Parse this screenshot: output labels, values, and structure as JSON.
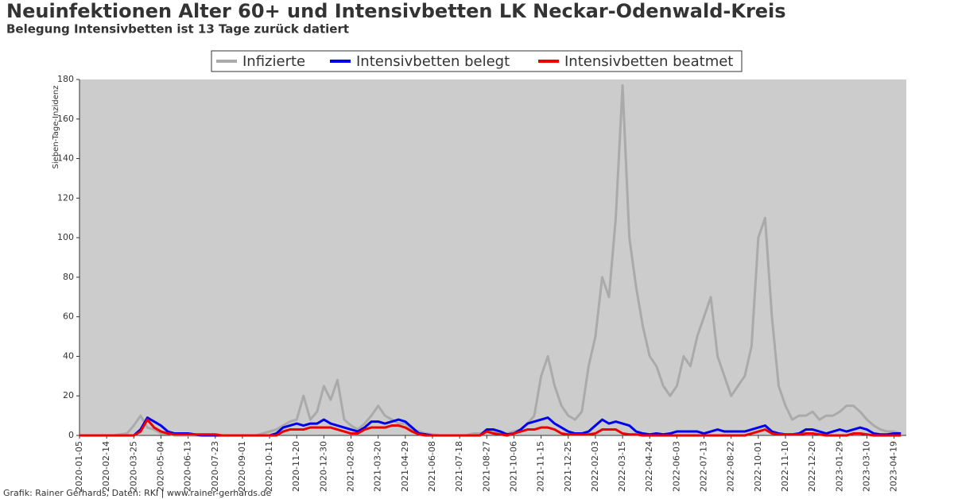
{
  "chart_data": {
    "type": "line",
    "title": "Neuinfektionen Alter 60+ und Intensivbetten LK Neckar-Odenwald-Kreis",
    "subtitle": "Belegung Intensivbetten ist 13 Tage zurück datiert",
    "ylabel": "Sieben-Tage-Inzidenz",
    "footer": "Grafik: Rainer Gerhards, Daten: RKI | www.rainer-gerhards.de",
    "legend": "top",
    "grid": false,
    "xlim": [
      "2020-01-05",
      "2023-05-07"
    ],
    "ylim": [
      0,
      180
    ],
    "yticks": [
      0,
      20,
      40,
      60,
      80,
      100,
      120,
      140,
      160,
      180
    ],
    "xticks": [
      "2020-01-05",
      "2020-02-14",
      "2020-03-25",
      "2020-05-04",
      "2020-06-13",
      "2020-07-23",
      "2020-09-01",
      "2020-10-11",
      "2020-11-20",
      "2020-12-30",
      "2021-02-08",
      "2021-03-20",
      "2021-04-29",
      "2021-06-08",
      "2021-07-18",
      "2021-08-27",
      "2021-10-06",
      "2021-11-15",
      "2021-12-25",
      "2022-02-03",
      "2022-03-15",
      "2022-04-24",
      "2022-06-03",
      "2022-07-13",
      "2022-08-22",
      "2022-10-01",
      "2022-11-10",
      "2022-12-20",
      "2023-01-29",
      "2023-03-10",
      "2023-04-19"
    ],
    "x": [
      "2020-01-05",
      "2020-01-15",
      "2020-01-25",
      "2020-02-04",
      "2020-02-14",
      "2020-02-24",
      "2020-03-05",
      "2020-03-15",
      "2020-03-25",
      "2020-04-04",
      "2020-04-14",
      "2020-04-24",
      "2020-05-04",
      "2020-05-14",
      "2020-05-24",
      "2020-06-03",
      "2020-06-13",
      "2020-06-23",
      "2020-07-03",
      "2020-07-13",
      "2020-07-23",
      "2020-08-02",
      "2020-08-12",
      "2020-08-22",
      "2020-09-01",
      "2020-09-11",
      "2020-09-21",
      "2020-10-01",
      "2020-10-11",
      "2020-10-21",
      "2020-10-31",
      "2020-11-10",
      "2020-11-20",
      "2020-11-30",
      "2020-12-10",
      "2020-12-20",
      "2020-12-30",
      "2021-01-09",
      "2021-01-19",
      "2021-01-29",
      "2021-02-08",
      "2021-02-18",
      "2021-02-28",
      "2021-03-10",
      "2021-03-20",
      "2021-03-30",
      "2021-04-09",
      "2021-04-19",
      "2021-04-29",
      "2021-05-09",
      "2021-05-19",
      "2021-05-29",
      "2021-06-08",
      "2021-06-18",
      "2021-06-28",
      "2021-07-08",
      "2021-07-18",
      "2021-07-28",
      "2021-08-07",
      "2021-08-17",
      "2021-08-27",
      "2021-09-06",
      "2021-09-16",
      "2021-09-26",
      "2021-10-06",
      "2021-10-16",
      "2021-10-26",
      "2021-11-05",
      "2021-11-15",
      "2021-11-25",
      "2021-12-05",
      "2021-12-15",
      "2021-12-25",
      "2022-01-04",
      "2022-01-14",
      "2022-01-24",
      "2022-02-03",
      "2022-02-13",
      "2022-02-23",
      "2022-03-05",
      "2022-03-15",
      "2022-03-25",
      "2022-04-04",
      "2022-04-14",
      "2022-04-24",
      "2022-05-04",
      "2022-05-14",
      "2022-05-24",
      "2022-06-03",
      "2022-06-13",
      "2022-06-23",
      "2022-07-03",
      "2022-07-13",
      "2022-07-23",
      "2022-08-02",
      "2022-08-12",
      "2022-08-22",
      "2022-09-01",
      "2022-09-11",
      "2022-09-21",
      "2022-10-01",
      "2022-10-11",
      "2022-10-21",
      "2022-10-31",
      "2022-11-10",
      "2022-11-20",
      "2022-11-30",
      "2022-12-10",
      "2022-12-20",
      "2022-12-30",
      "2023-01-09",
      "2023-01-19",
      "2023-01-29",
      "2023-02-08",
      "2023-02-18",
      "2023-02-28",
      "2023-03-10",
      "2023-03-20",
      "2023-03-30",
      "2023-04-09",
      "2023-04-19",
      "2023-04-29"
    ],
    "series": [
      {
        "name": "Infizierte",
        "color": "#aaaaaa",
        "values": [
          0,
          0,
          0,
          0,
          0,
          0,
          0.5,
          1,
          5,
          10,
          4,
          3,
          1,
          1,
          0,
          0,
          0,
          0,
          0,
          0,
          0,
          0,
          0,
          0,
          0,
          0,
          0,
          1,
          2,
          3,
          5,
          7,
          8,
          20,
          8,
          12,
          25,
          18,
          28,
          8,
          5,
          3,
          6,
          10,
          15,
          10,
          8,
          6,
          6,
          3,
          2,
          1,
          0.5,
          0,
          0,
          0,
          0,
          0,
          1,
          1,
          2,
          2,
          1,
          1,
          2,
          3,
          6,
          10,
          30,
          40,
          25,
          15,
          10,
          8,
          12,
          35,
          50,
          80,
          70,
          110,
          177,
          100,
          75,
          55,
          40,
          35,
          25,
          20,
          25,
          40,
          35,
          50,
          60,
          70,
          40,
          30,
          20,
          25,
          30,
          45,
          100,
          110,
          60,
          25,
          15,
          8,
          10,
          10,
          12,
          8,
          10,
          10,
          12,
          15,
          15,
          12,
          8,
          5,
          3,
          2,
          2,
          1
        ]
      },
      {
        "name": "Intensivbetten belegt",
        "color": "#0000ee",
        "values": [
          0,
          0,
          0,
          0,
          0,
          0,
          0,
          0,
          0,
          3,
          9,
          7,
          5,
          2,
          1,
          1,
          1,
          0.5,
          0,
          0,
          0,
          0,
          0,
          0,
          0,
          0,
          0,
          0,
          0,
          1,
          4,
          5,
          6,
          5,
          6,
          6,
          8,
          6,
          5,
          4,
          3,
          2,
          4,
          7,
          7,
          6,
          7,
          8,
          7,
          4,
          1,
          0.5,
          0,
          0,
          0,
          0,
          0,
          0,
          0,
          0,
          3,
          3,
          2,
          0.5,
          1,
          3,
          6,
          7,
          8,
          9,
          6,
          4,
          2,
          1,
          1,
          2,
          5,
          8,
          6,
          7,
          6,
          5,
          2,
          1,
          0.5,
          1,
          0.5,
          1,
          2,
          2,
          2,
          2,
          1,
          2,
          3,
          2,
          2,
          2,
          2,
          3,
          4,
          5,
          2,
          1,
          0.5,
          0.5,
          1,
          3,
          3,
          2,
          1,
          2,
          3,
          2,
          3,
          4,
          3,
          1,
          0.5,
          0.5,
          1,
          1
        ]
      },
      {
        "name": "Intensivbetten beatmet",
        "color": "#ee0000",
        "values": [
          0,
          0,
          0,
          0,
          0,
          0,
          0,
          0,
          0,
          2,
          8,
          4,
          2,
          1,
          0.5,
          0.5,
          0.5,
          0.5,
          0.5,
          0.5,
          0.5,
          0,
          0,
          0,
          0,
          0,
          0,
          0,
          0,
          0,
          2,
          3,
          3,
          3,
          4,
          4,
          4,
          4,
          3,
          2,
          1,
          1,
          3,
          4,
          4,
          4,
          5,
          5,
          4,
          2,
          0.5,
          0,
          0,
          0,
          0,
          0,
          0,
          0,
          0,
          0,
          2,
          1,
          0.5,
          0,
          1,
          2,
          3,
          3,
          4,
          4,
          3,
          1,
          0.5,
          0.5,
          0.5,
          0.5,
          1,
          3,
          3,
          3,
          1,
          0.5,
          0.5,
          0,
          0,
          0,
          0,
          0,
          0,
          0,
          0,
          0,
          0,
          0,
          0,
          0,
          0,
          0,
          0,
          1,
          2,
          3,
          1,
          0.5,
          0.5,
          0.5,
          0.5,
          1,
          1,
          0.5,
          0,
          0,
          0,
          0,
          1,
          1,
          0.5,
          0,
          0,
          0,
          0,
          0
        ]
      }
    ]
  }
}
